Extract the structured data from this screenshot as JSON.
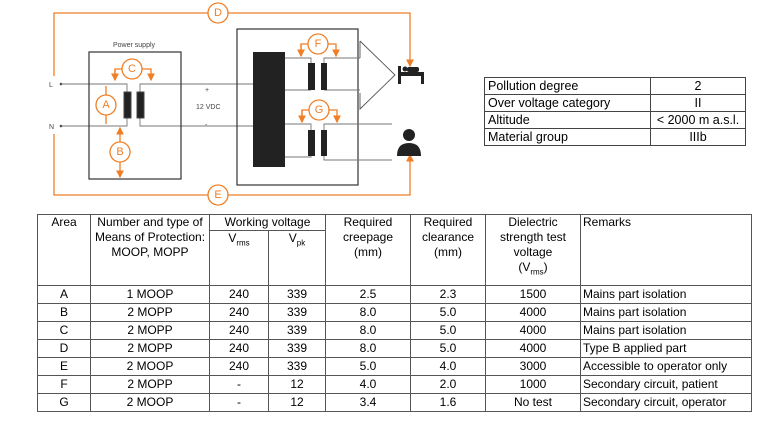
{
  "diagram": {
    "power_supply_label": "Power supply",
    "line_label": "L",
    "neutral_label": "N",
    "plus": "+",
    "minus": "-",
    "voltage_label": "12 VDC",
    "areas": [
      "A",
      "B",
      "C",
      "D",
      "E",
      "F",
      "G"
    ],
    "accent_color": "#f07e26",
    "icons": [
      "patient-in-bed-icon",
      "doctor-operator-icon"
    ]
  },
  "conditions": [
    {
      "label": "Pollution degree",
      "value": "2"
    },
    {
      "label": "Over voltage category",
      "value": "II"
    },
    {
      "label": "Altitude",
      "value": "< 2000 m a.s.l."
    },
    {
      "label": "Material group",
      "value": "IIIb"
    }
  ],
  "table": {
    "headers": {
      "area": "Area",
      "means": "Number and type of Means of Protection: MOOP, MOPP",
      "working_voltage": "Working voltage",
      "vrms_main": "V",
      "vrms_sub": "rms",
      "vpk_main": "V",
      "vpk_sub": "pk",
      "creepage": "Required creepage (mm)",
      "clearance": "Required clearance (mm)",
      "dielectric": "Dielectric strength test voltage",
      "dielectric_unit_main": "(V",
      "dielectric_unit_sub": "rms",
      "dielectric_unit_close": ")",
      "remarks": "Remarks"
    },
    "rows": [
      [
        "A",
        "1 MOOP",
        "240",
        "339",
        "2.5",
        "2.3",
        "1500",
        "Mains part isolation"
      ],
      [
        "B",
        "2 MOPP",
        "240",
        "339",
        "8.0",
        "5.0",
        "4000",
        "Mains part isolation"
      ],
      [
        "C",
        "2 MOPP",
        "240",
        "339",
        "8.0",
        "5.0",
        "4000",
        "Mains part isolation"
      ],
      [
        "D",
        "2 MOPP",
        "240",
        "339",
        "8.0",
        "5.0",
        "4000",
        "Type B applied part"
      ],
      [
        "E",
        "2 MOOP",
        "240",
        "339",
        "5.0",
        "4.0",
        "3000",
        "Accessible to operator only"
      ],
      [
        "F",
        "2 MOPP",
        "-",
        "12",
        "4.0",
        "2.0",
        "1000",
        "Secondary circuit, patient"
      ],
      [
        "G",
        "2 MOOP",
        "-",
        "12",
        "3.4",
        "1.6",
        "No test",
        "Secondary circuit, operator"
      ]
    ]
  }
}
